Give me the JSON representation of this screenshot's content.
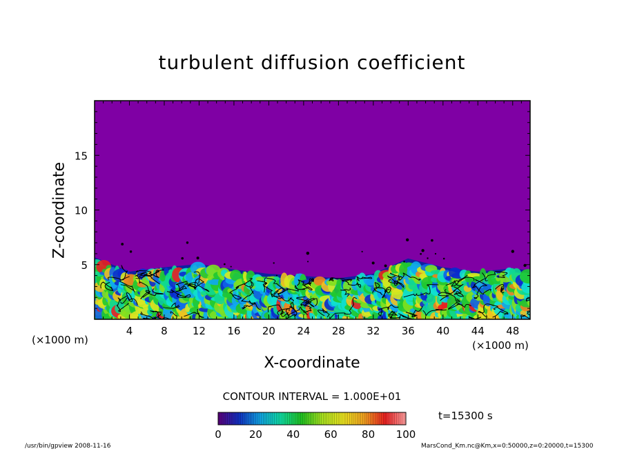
{
  "chart_data": {
    "type": "heatmap",
    "title": "turbulent diffusion coefficient",
    "xlabel": "X-coordinate",
    "ylabel": "Z-coordinate",
    "x_unit": "(×1000 m)",
    "xlim": [
      0,
      50
    ],
    "ylim": [
      0,
      20
    ],
    "x_ticks": [
      4,
      8,
      12,
      16,
      20,
      24,
      28,
      32,
      36,
      40,
      44,
      48
    ],
    "y_ticks": [
      5,
      10,
      15
    ],
    "colorbar": {
      "ticks": [
        0,
        20,
        40,
        60,
        80,
        100
      ],
      "range": [
        0,
        100
      ],
      "colors": [
        "#5a007a",
        "#1030c0",
        "#10a0e0",
        "#10d8a0",
        "#20c020",
        "#a8e020",
        "#e8e020",
        "#f0a020",
        "#e82020",
        "#ffa0a0"
      ]
    },
    "contour_interval": "CONTOUR INTERVAL = 1.000E+01",
    "time_label": "t=15300 s",
    "background_color": "#7f00a4",
    "approx_turbulent_layer_top_z": [
      {
        "x": 0,
        "z": 5.5
      },
      {
        "x": 4,
        "z": 4.2
      },
      {
        "x": 8,
        "z": 4.6
      },
      {
        "x": 12,
        "z": 4.9
      },
      {
        "x": 16,
        "z": 4.4
      },
      {
        "x": 20,
        "z": 4.0
      },
      {
        "x": 24,
        "z": 3.8
      },
      {
        "x": 28,
        "z": 3.6
      },
      {
        "x": 32,
        "z": 4.0
      },
      {
        "x": 36,
        "z": 5.4
      },
      {
        "x": 40,
        "z": 4.6
      },
      {
        "x": 44,
        "z": 4.2
      },
      {
        "x": 48,
        "z": 4.5
      },
      {
        "x": 50,
        "z": 4.3
      }
    ]
  },
  "footer": {
    "left": "/usr/bin/gpview   2008-11-16",
    "right": "MarsCond_Km.nc@Km,x=0:50000,z=0:20000,t=15300"
  }
}
